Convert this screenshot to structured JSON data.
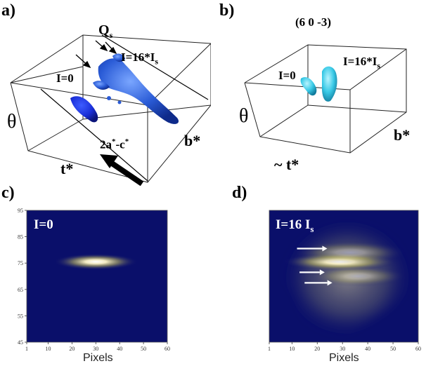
{
  "panel_a": {
    "label": "a)",
    "qs_label": "Q",
    "qs_sub": "s",
    "i_zero": "I=0",
    "i_high": "I=16*I",
    "i_high_sub": "s",
    "theta": "θ",
    "t_star": "t*",
    "b_star": "b*",
    "vector": "2a",
    "vector_sup1": "*",
    "vector_mid": "-c",
    "vector_sup2": "*"
  },
  "panel_b": {
    "label": "b)",
    "index": "(6 0 -3)",
    "i_zero": "I=0",
    "i_high": "I=16*I",
    "i_high_sub": "s",
    "theta": "θ",
    "t_star": "~ t*",
    "b_star": "b*"
  },
  "panel_c": {
    "label": "c)",
    "title": "I=0",
    "xlabel": "Pixels"
  },
  "panel_d": {
    "label": "d)",
    "title": "I=16 I",
    "title_sub": "s",
    "xlabel": "Pixels"
  },
  "colors": {
    "heatmap_bg": "#0a0f6a",
    "peak": "#fff6c8",
    "isosurface_a": "#2a5bd6",
    "isosurface_b": "#38c9e6"
  },
  "chart_data": [
    {
      "type": "heatmap",
      "panel": "c",
      "title": "I=0",
      "xlabel": "Pixels",
      "x_ticks": [
        "1",
        "10",
        "20",
        "30",
        "40",
        "50",
        "60"
      ],
      "y_ticks": [
        "95",
        "85",
        "75",
        "65",
        "55",
        "45"
      ],
      "xlim": [
        1,
        60
      ],
      "ylim": [
        45,
        95
      ],
      "peaks": [
        {
          "x": 30,
          "y": 75.5,
          "spread_x": 11,
          "spread_y": 1.4,
          "intensity": 1.0
        }
      ]
    },
    {
      "type": "heatmap",
      "panel": "d",
      "title": "I=16 Is",
      "xlabel": "Pixels",
      "x_ticks": [
        "1",
        "10",
        "20",
        "30",
        "40",
        "50",
        "60"
      ],
      "xlim": [
        1,
        60
      ],
      "ylim": [
        45,
        95
      ],
      "peaks": [
        {
          "x": 29,
          "y": 75.5,
          "spread_x": 14,
          "spread_y": 1.6,
          "intensity": 1.0
        },
        {
          "x": 33,
          "y": 79,
          "spread_x": 14,
          "spread_y": 2.0,
          "intensity": 0.45
        },
        {
          "x": 36,
          "y": 70,
          "spread_x": 12,
          "spread_y": 1.8,
          "intensity": 0.45
        }
      ],
      "arrows_y": [
        80.5,
        71.5,
        67.5
      ]
    }
  ]
}
